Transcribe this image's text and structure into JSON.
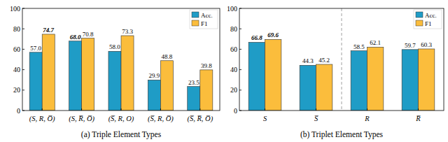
{
  "chart_data": [
    {
      "type": "bar",
      "title": "(a) Triple Element Types",
      "categories": [
        "(S, R, O̅)",
        "(S, R̅, O̅)",
        "(S̅, R, O)",
        "(S̅, R, O̅)",
        "(S̅, R̅, O̅)"
      ],
      "series": [
        {
          "name": "Acc.",
          "color": "#1f9cc6",
          "values": [
            57.0,
            68.0,
            58.0,
            29.9,
            23.5
          ],
          "value_labels": [
            "57.0",
            "68.0",
            "58.0",
            "29.9",
            "23.5"
          ]
        },
        {
          "name": "F1",
          "color": "#fbbd3c",
          "values": [
            74.7,
            70.8,
            73.3,
            48.8,
            39.8
          ],
          "value_labels": [
            "74.7",
            "70.8",
            "73.3",
            "48.8",
            "39.8"
          ]
        }
      ],
      "ylim": [
        0,
        100
      ],
      "yticks": [
        0,
        20,
        40,
        60,
        80,
        100
      ],
      "grid": false,
      "legend": "upper right",
      "data_labels": true
    },
    {
      "type": "bar",
      "title": "(b) Triplet Element Types",
      "categories": [
        "S",
        "S̅",
        "R",
        "R̅"
      ],
      "series": [
        {
          "name": "Acc.",
          "color": "#1f9cc6",
          "values": [
            66.8,
            44.3,
            58.5,
            59.7
          ],
          "value_labels": [
            "66.8",
            "44.3",
            "58.5",
            "59.7"
          ]
        },
        {
          "name": "F1",
          "color": "#fbbd3c",
          "values": [
            69.6,
            45.2,
            62.1,
            60.3
          ],
          "value_labels": [
            "69.6",
            "45.2",
            "62.1",
            "60.3"
          ]
        }
      ],
      "ylim": [
        0,
        100
      ],
      "yticks": [
        0,
        20,
        40,
        60,
        80,
        100
      ],
      "grid": false,
      "legend": "upper right",
      "data_labels": true
    }
  ]
}
